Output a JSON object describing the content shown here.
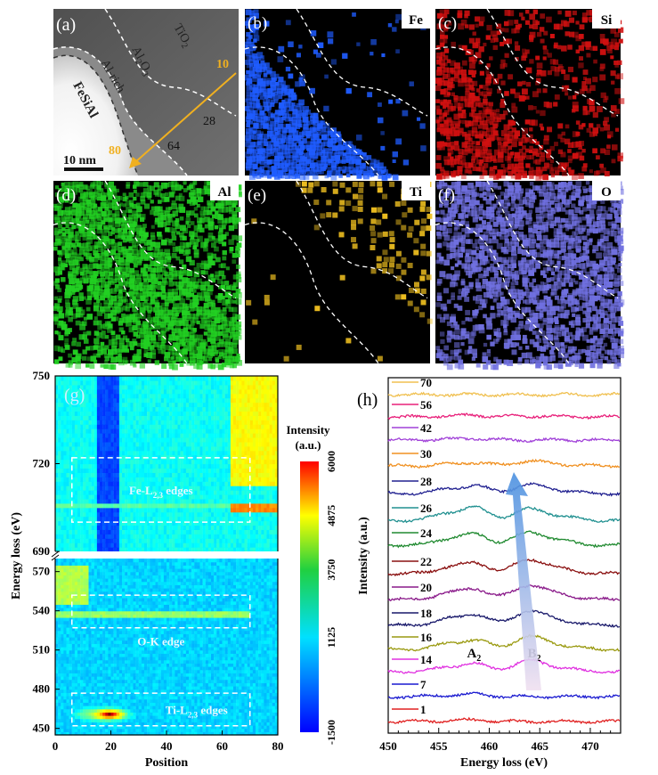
{
  "panels": {
    "a": {
      "label": "(a)",
      "regions": [
        "TiO2",
        "Al2O3",
        "Al-rich",
        "FeSiAl"
      ],
      "region_display": {
        "tio2_main": "TiO",
        "tio2_sub": "2",
        "al2o3_a": "Al",
        "al2o3_sub1": "2",
        "al2o3_b": "O",
        "al2o3_sub2": "3",
        "alrich": "Al-rich",
        "fesial": "FeSiAl"
      },
      "arrow_start": "10",
      "arrow_end": "80",
      "markers": [
        "28",
        "64"
      ],
      "scale_bar": "10 nm",
      "arrow_color": "#f0b020"
    },
    "maps": [
      {
        "id": "b",
        "label": "(b)",
        "element": "Fe",
        "color": "#1f5cff"
      },
      {
        "id": "c",
        "label": "(c)",
        "element": "Si",
        "color": "#d01010"
      },
      {
        "id": "d",
        "label": "(d)",
        "element": "Al",
        "color": "#22d022"
      },
      {
        "id": "e",
        "label": "(e)",
        "element": "Ti",
        "color": "#f0c020"
      },
      {
        "id": "f",
        "label": "(f)",
        "element": "O",
        "color": "#7070e0"
      }
    ]
  },
  "chart_data": [
    {
      "panel": "(g)",
      "type": "heatmap",
      "xlabel": "Position",
      "ylabel": "Energy loss (eV)",
      "xlim": [
        0,
        80
      ],
      "x_ticks": [
        "0",
        "20",
        "40",
        "60",
        "80"
      ],
      "y_segments": [
        {
          "ylim": [
            690,
            750
          ],
          "ticks": [
            "690",
            "720",
            "750"
          ]
        },
        {
          "ylim": [
            445,
            580
          ],
          "ticks": [
            "450",
            "480",
            "510",
            "540",
            "570"
          ]
        }
      ],
      "axis_break": true,
      "colorbar": {
        "title": "Intensity",
        "unit": "(a.u.)",
        "range": [
          -1500,
          6000
        ],
        "ticks": [
          "-1500",
          "1125",
          "3750",
          "4875",
          "6000"
        ],
        "colormap": "jet"
      },
      "annotations": [
        {
          "text": "Fe-L",
          "sub": "2,3",
          "suffix": " edges",
          "box_x": [
            6,
            70
          ],
          "box_y": [
            700,
            722
          ]
        },
        {
          "text": "O-K edge",
          "box_x": [
            6,
            70
          ],
          "box_y": [
            527,
            552
          ]
        },
        {
          "text": "Ti-L",
          "sub": "2,3",
          "suffix": " edges",
          "box_x": [
            6,
            70
          ],
          "box_y": [
            452,
            477
          ]
        }
      ],
      "features": [
        {
          "kind": "band",
          "x": [
            15,
            23
          ],
          "y": [
            690,
            750
          ],
          "value": -800
        },
        {
          "kind": "region",
          "x": [
            63,
            80
          ],
          "y": [
            712,
            750
          ],
          "value": 2800
        },
        {
          "kind": "line",
          "x": [
            63,
            80
          ],
          "y": [
            703,
            706
          ],
          "value": 3700
        },
        {
          "kind": "line",
          "x": [
            0,
            63
          ],
          "y": [
            705,
            707
          ],
          "value": 1500
        },
        {
          "kind": "region",
          "x": [
            0,
            12
          ],
          "y": [
            545,
            575
          ],
          "value": 2200
        },
        {
          "kind": "line",
          "x": [
            0,
            70
          ],
          "y": [
            535,
            541
          ],
          "value": 2000
        },
        {
          "kind": "spot",
          "x": [
            13,
            26
          ],
          "y": [
            456,
            466
          ],
          "value": 6000
        },
        {
          "kind": "spot",
          "x": [
            5,
            30
          ],
          "y": [
            454,
            468
          ],
          "value": 3000
        }
      ]
    },
    {
      "panel": "(h)",
      "type": "line",
      "xlabel": "Energy loss (eV)",
      "ylabel": "Intensity (a.u.)",
      "xlim": [
        450,
        473
      ],
      "x_ticks": [
        "450",
        "455",
        "460",
        "465",
        "470"
      ],
      "peak_labels": [
        {
          "text": "A",
          "sub": "2",
          "x": 458.5
        },
        {
          "text": "B",
          "sub": "2",
          "x": 464.5
        }
      ],
      "series": [
        {
          "name": "70",
          "color": "#f0c050",
          "A2": 0.0,
          "B2": 0.0
        },
        {
          "name": "56",
          "color": "#e8207a",
          "A2": 0.1,
          "B2": 0.05
        },
        {
          "name": "42",
          "color": "#a040d8",
          "A2": 0.1,
          "B2": 0.0
        },
        {
          "name": "30",
          "color": "#f09020",
          "A2": 0.2,
          "B2": 0.3
        },
        {
          "name": "28",
          "color": "#202090",
          "A2": 0.5,
          "B2": 0.55
        },
        {
          "name": "26",
          "color": "#209090",
          "A2": 0.8,
          "B2": 0.7
        },
        {
          "name": "24",
          "color": "#208a30",
          "A2": 0.7,
          "B2": 0.8
        },
        {
          "name": "22",
          "color": "#8a1010",
          "A2": 0.7,
          "B2": 0.9
        },
        {
          "name": "20",
          "color": "#8a1a8a",
          "A2": 0.7,
          "B2": 0.9
        },
        {
          "name": "18",
          "color": "#18186a",
          "A2": 0.7,
          "B2": 0.9
        },
        {
          "name": "16",
          "color": "#9a9a10",
          "A2": 0.6,
          "B2": 0.8
        },
        {
          "name": "14",
          "color": "#e030e0",
          "A2": 0.5,
          "B2": 0.7
        },
        {
          "name": "7",
          "color": "#1a1ad0",
          "A2": 0.15,
          "B2": 0.0
        },
        {
          "name": "1",
          "color": "#e02020",
          "A2": 0.1,
          "B2": 0.0
        }
      ]
    }
  ]
}
